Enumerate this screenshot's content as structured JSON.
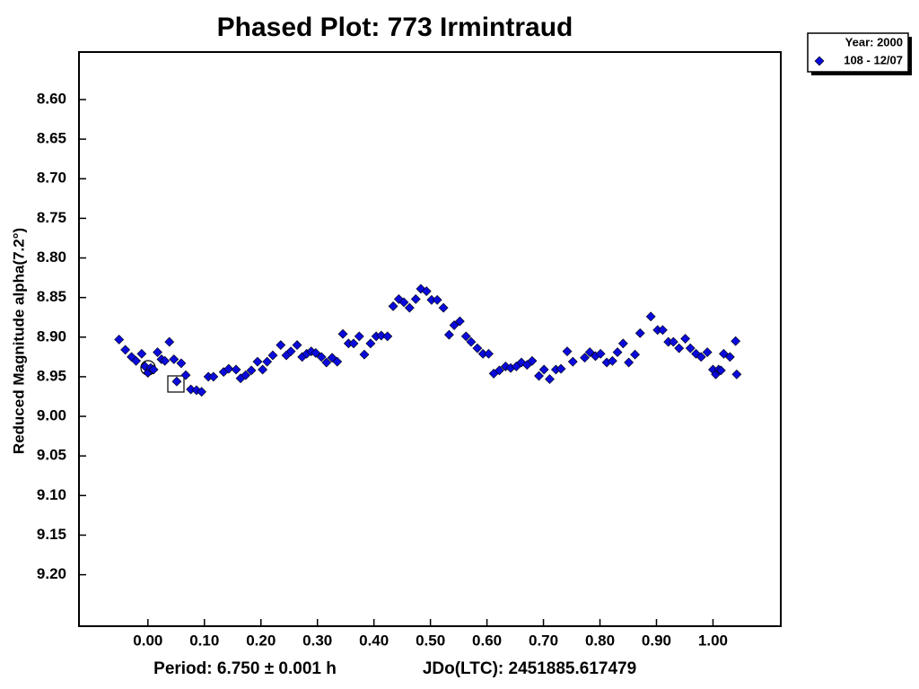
{
  "chart_data": {
    "type": "scatter",
    "title": "Phased Plot: 773 Irmintraud",
    "y_label": "Reduced Magnitude alpha(7.2°)",
    "footer": [
      "Period: 6.750 ± 0.001 h",
      "JDo(LTC): 2451885.617479"
    ],
    "legend_title": "Year: 2000",
    "legend_position": "top-right-outside",
    "y_inverted": true,
    "xlim": [
      -0.122,
      1.12
    ],
    "ylim": [
      8.54,
      9.265
    ],
    "xticks": [
      {
        "value": 0,
        "label": "0.00"
      },
      {
        "value": 0.1,
        "label": "0.10"
      },
      {
        "value": 0.2,
        "label": "0.20"
      },
      {
        "value": 0.3,
        "label": "0.30"
      },
      {
        "value": 0.4,
        "label": "0.40"
      },
      {
        "value": 0.5,
        "label": "0.50"
      },
      {
        "value": 0.6,
        "label": "0.60"
      },
      {
        "value": 0.7,
        "label": "0.70"
      },
      {
        "value": 0.8,
        "label": "0.80"
      },
      {
        "value": 0.9,
        "label": "0.90"
      },
      {
        "value": 1,
        "label": "1.00"
      }
    ],
    "yticks": [
      {
        "value": 8.6,
        "label": "8.60"
      },
      {
        "value": 8.65,
        "label": "8.65"
      },
      {
        "value": 8.7,
        "label": "8.70"
      },
      {
        "value": 8.75,
        "label": "8.75"
      },
      {
        "value": 8.8,
        "label": "8.80"
      },
      {
        "value": 8.85,
        "label": "8.85"
      },
      {
        "value": 8.9,
        "label": "8.90"
      },
      {
        "value": 8.95,
        "label": "8.95"
      },
      {
        "value": 9,
        "label": "9.00"
      },
      {
        "value": 9.05,
        "label": "9.05"
      },
      {
        "value": 9.1,
        "label": "9.10"
      },
      {
        "value": 9.15,
        "label": "9.15"
      },
      {
        "value": 9.2,
        "label": "9.20"
      }
    ],
    "series": [
      {
        "name": "108 - 12/07",
        "color": "#0a0adc",
        "x": [
          -0.051,
          -0.04,
          -0.029,
          -0.021,
          -0.011,
          -0.005,
          0.0,
          0.005,
          0.01,
          0.017,
          0.024,
          0.03,
          0.038,
          0.046,
          0.051,
          0.059,
          0.067,
          0.076,
          0.086,
          0.095,
          0.107,
          0.116,
          0.134,
          0.143,
          0.156,
          0.164,
          0.173,
          0.183,
          0.194,
          0.203,
          0.211,
          0.221,
          0.235,
          0.245,
          0.253,
          0.264,
          0.273,
          0.281,
          0.289,
          0.297,
          0.307,
          0.316,
          0.326,
          0.335,
          0.345,
          0.355,
          0.364,
          0.374,
          0.383,
          0.394,
          0.404,
          0.413,
          0.424,
          0.434,
          0.444,
          0.453,
          0.463,
          0.474,
          0.483,
          0.493,
          0.502,
          0.512,
          0.523,
          0.533,
          0.542,
          0.552,
          0.563,
          0.572,
          0.583,
          0.593,
          0.603,
          0.612,
          0.622,
          0.633,
          0.642,
          0.652,
          0.661,
          0.671,
          0.68,
          0.692,
          0.701,
          0.711,
          0.722,
          0.731,
          0.742,
          0.752,
          0.773,
          0.782,
          0.792,
          0.801,
          0.812,
          0.822,
          0.831,
          0.841,
          0.851,
          0.862,
          0.871,
          0.89,
          0.902,
          0.911,
          0.921,
          0.93,
          0.94,
          0.951,
          0.96,
          0.97,
          0.979,
          0.99,
          1.0,
          1.005,
          1.01,
          1.014,
          1.019,
          1.03,
          1.04,
          1.042
        ],
        "values": [
          8.903,
          8.916,
          8.925,
          8.93,
          8.921,
          8.937,
          8.945,
          8.939,
          8.941,
          8.919,
          8.928,
          8.93,
          8.906,
          8.928,
          8.956,
          8.933,
          8.948,
          8.966,
          8.967,
          8.969,
          8.95,
          8.95,
          8.944,
          8.94,
          8.941,
          8.952,
          8.948,
          8.942,
          8.931,
          8.941,
          8.931,
          8.923,
          8.91,
          8.923,
          8.918,
          8.91,
          8.925,
          8.921,
          8.918,
          8.92,
          8.925,
          8.932,
          8.926,
          8.931,
          8.896,
          8.908,
          8.908,
          8.899,
          8.922,
          8.908,
          8.899,
          8.898,
          8.899,
          8.861,
          8.852,
          8.856,
          8.863,
          8.852,
          8.839,
          8.842,
          8.853,
          8.853,
          8.863,
          8.897,
          8.885,
          8.88,
          8.899,
          8.906,
          8.914,
          8.921,
          8.921,
          8.946,
          8.942,
          8.937,
          8.939,
          8.937,
          8.932,
          8.935,
          8.93,
          8.949,
          8.941,
          8.953,
          8.941,
          8.94,
          8.918,
          8.931,
          8.926,
          8.919,
          8.924,
          8.921,
          8.932,
          8.93,
          8.919,
          8.908,
          8.932,
          8.922,
          8.895,
          8.874,
          8.891,
          8.891,
          8.906,
          8.906,
          8.914,
          8.902,
          8.914,
          8.921,
          8.925,
          8.919,
          8.941,
          8.947,
          8.941,
          8.942,
          8.921,
          8.925,
          8.905,
          8.947
        ]
      }
    ]
  }
}
